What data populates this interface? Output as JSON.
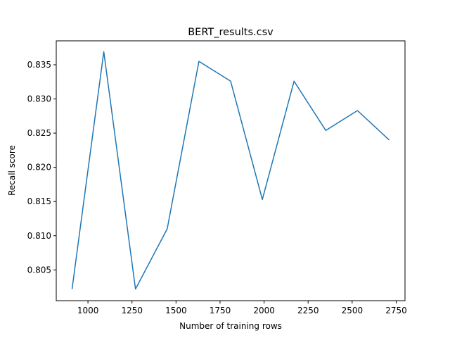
{
  "chart_data": {
    "type": "line",
    "title": "BERT_results.csv",
    "xlabel": "Number of training rows",
    "ylabel": "Recall score",
    "xlim": [
      820,
      2800
    ],
    "ylim": [
      0.8005,
      0.8385
    ],
    "xticks": [
      1000,
      1250,
      1500,
      1750,
      2000,
      2250,
      2500,
      2750
    ],
    "xtick_labels": [
      "1000",
      "1250",
      "1500",
      "1750",
      "2000",
      "2250",
      "2500",
      "2750"
    ],
    "yticks": [
      0.805,
      0.81,
      0.815,
      0.82,
      0.825,
      0.83,
      0.835
    ],
    "ytick_labels": [
      "0.805",
      "0.810",
      "0.815",
      "0.820",
      "0.825",
      "0.830",
      "0.835"
    ],
    "grid": false,
    "legend": false,
    "series": [
      {
        "color": "#1f77b4",
        "x": [
          910,
          1090,
          1270,
          1450,
          1630,
          1810,
          1990,
          2170,
          2350,
          2530,
          2710
        ],
        "y": [
          0.8022,
          0.8369,
          0.8022,
          0.811,
          0.8355,
          0.8326,
          0.8153,
          0.8326,
          0.8254,
          0.8283,
          0.824
        ]
      }
    ]
  }
}
